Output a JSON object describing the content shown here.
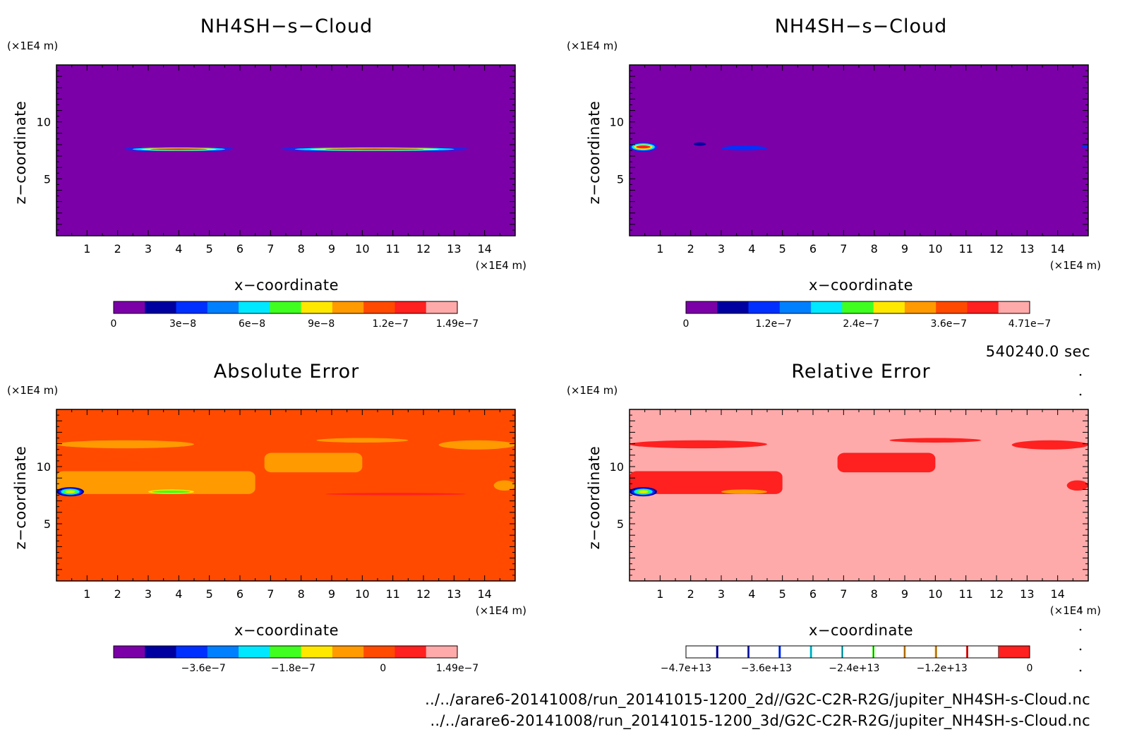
{
  "colors": {
    "purple": "#7b00a8",
    "navy": "#0000a0",
    "blue": "#0030ff",
    "mid_blue": "#0080ff",
    "cyan": "#00e8ff",
    "green": "#40ff20",
    "yellow": "#ffe800",
    "orange": "#ff9a00",
    "red_orange": "#ff4a00",
    "red": "#ff2020",
    "pink": "#ffaaaa"
  },
  "time_label": "540240.0 sec",
  "footer": {
    "line1": "../../arare6-20141008/run_20141015-1200_2d//G2C-C2R-R2G/jupiter_NH4SH-s-Cloud.nc",
    "line2": "../../arare6-20141008/run_20141015-1200_3d/G2C-C2R-R2G/jupiter_NH4SH-s-Cloud.nc"
  },
  "chart_data": [
    {
      "type": "heatmap",
      "title": "NH4SH−s−Cloud",
      "xlabel": "x−coordinate",
      "ylabel": "z−coordinate",
      "x_unit": "(×1E4 m)",
      "y_unit": "(×1E4 m)",
      "xlim": [
        0,
        15
      ],
      "ylim": [
        0,
        15
      ],
      "x_ticks": [
        "1",
        "2",
        "3",
        "4",
        "5",
        "6",
        "7",
        "8",
        "9",
        "10",
        "11",
        "12",
        "13",
        "14"
      ],
      "y_ticks": [
        "5",
        "10"
      ],
      "background": "purple",
      "features": [
        {
          "x": [
            2.2,
            5.8
          ],
          "z": [
            7.4,
            7.8
          ],
          "value": 1.4e-07,
          "colors": [
            "blue",
            "cyan",
            "yellow",
            "red"
          ]
        },
        {
          "x": [
            7.3,
            13.5
          ],
          "z": [
            7.4,
            7.8
          ],
          "value": 1.4e-07,
          "colors": [
            "blue",
            "cyan",
            "yellow",
            "red"
          ]
        }
      ],
      "colorbar": {
        "colors": [
          "purple",
          "navy",
          "blue",
          "mid_blue",
          "cyan",
          "green",
          "yellow",
          "orange",
          "red_orange",
          "red",
          "pink"
        ],
        "tick_labels": [
          "0",
          "3e−8",
          "6e−8",
          "9e−8",
          "1.2e−7",
          "1.49e−7"
        ],
        "tick_values": [
          0,
          3e-08,
          6e-08,
          9e-08,
          1.2e-07,
          1.49e-07
        ],
        "range": [
          0,
          1.49e-07
        ]
      }
    },
    {
      "type": "heatmap",
      "title": "NH4SH−s−Cloud",
      "xlabel": "x−coordinate",
      "ylabel": "z−coordinate",
      "x_unit": "(×1E4 m)",
      "y_unit": "(×1E4 m)",
      "xlim": [
        0,
        15
      ],
      "ylim": [
        0,
        15
      ],
      "x_ticks": [
        "1",
        "2",
        "3",
        "4",
        "5",
        "6",
        "7",
        "8",
        "9",
        "10",
        "11",
        "12",
        "13",
        "14"
      ],
      "y_ticks": [
        "5",
        "10"
      ],
      "background": "purple",
      "features": [
        {
          "x": [
            0,
            0.9
          ],
          "z": [
            7.4,
            8.2
          ],
          "value": 4.7e-07,
          "colors": [
            "blue",
            "cyan",
            "yellow",
            "red"
          ]
        },
        {
          "x": [
            2.1,
            2.5
          ],
          "z": [
            7.9,
            8.2
          ],
          "value": 1e-07,
          "colors": [
            "navy"
          ]
        },
        {
          "x": [
            3.0,
            4.5
          ],
          "z": [
            7.5,
            7.9
          ],
          "value": 1e-07,
          "colors": [
            "blue"
          ]
        },
        {
          "x": [
            14.8,
            15.0
          ],
          "z": [
            7.7,
            8.0
          ],
          "value": 1e-07,
          "colors": [
            "blue"
          ]
        }
      ],
      "colorbar": {
        "colors": [
          "purple",
          "navy",
          "blue",
          "mid_blue",
          "cyan",
          "green",
          "yellow",
          "orange",
          "red_orange",
          "red",
          "pink"
        ],
        "tick_labels": [
          "0",
          "1.2e−7",
          "2.4e−7",
          "3.6e−7",
          "4.71e−7"
        ],
        "tick_values": [
          0,
          1.2e-07,
          2.4e-07,
          3.6e-07,
          4.71e-07
        ],
        "range": [
          0,
          4.71e-07
        ]
      }
    },
    {
      "type": "heatmap",
      "title": "Absolute Error",
      "xlabel": "x−coordinate",
      "ylabel": "z−coordinate",
      "x_unit": "(×1E4 m)",
      "y_unit": "(×1E4 m)",
      "xlim": [
        0,
        15
      ],
      "ylim": [
        0,
        15
      ],
      "x_ticks": [
        "1",
        "2",
        "3",
        "4",
        "5",
        "6",
        "7",
        "8",
        "9",
        "10",
        "11",
        "12",
        "13",
        "14"
      ],
      "y_ticks": [
        "5",
        "10"
      ],
      "background": "red_orange",
      "features": [
        {
          "x": [
            0,
            6.5
          ],
          "z": [
            7.6,
            9.6
          ],
          "value": 0.0,
          "colors": [
            "orange"
          ]
        },
        {
          "x": [
            0,
            0.9
          ],
          "z": [
            7.4,
            8.2
          ],
          "value": -4.7e-07,
          "colors": [
            "navy",
            "blue",
            "cyan",
            "green",
            "yellow"
          ]
        },
        {
          "x": [
            3.0,
            4.5
          ],
          "z": [
            7.6,
            8.0
          ],
          "value": -1e-07,
          "colors": [
            "yellow",
            "green"
          ]
        },
        {
          "x": [
            6.8,
            10.0
          ],
          "z": [
            9.5,
            11.2
          ],
          "value": 0.0,
          "colors": [
            "orange"
          ]
        },
        {
          "x": [
            0,
            4.5
          ],
          "z": [
            11.6,
            12.3
          ],
          "value": 0.0,
          "colors": [
            "orange"
          ]
        },
        {
          "x": [
            8.5,
            11.5
          ],
          "z": [
            12.1,
            12.5
          ],
          "value": 0.0,
          "colors": [
            "orange"
          ]
        },
        {
          "x": [
            12.5,
            15.0
          ],
          "z": [
            11.5,
            12.3
          ],
          "value": 0.0,
          "colors": [
            "orange"
          ]
        },
        {
          "x": [
            14.3,
            15.0
          ],
          "z": [
            7.9,
            8.8
          ],
          "value": 0.0,
          "colors": [
            "orange"
          ]
        },
        {
          "x": [
            8.8,
            13.4
          ],
          "z": [
            7.5,
            7.7
          ],
          "value": 1e-07,
          "colors": [
            "red"
          ]
        }
      ],
      "colorbar": {
        "colors": [
          "purple",
          "navy",
          "blue",
          "mid_blue",
          "cyan",
          "green",
          "yellow",
          "orange",
          "red_orange",
          "red",
          "pink"
        ],
        "tick_labels": [
          "−3.6e−7",
          "−1.8e−7",
          "0",
          "1.49e−7"
        ],
        "tick_values": [
          -3.6e-07,
          -1.8e-07,
          0,
          1.49e-07
        ],
        "range": [
          -5.4e-07,
          1.49e-07
        ]
      }
    },
    {
      "type": "heatmap",
      "title": "Relative Error",
      "xlabel": "x−coordinate",
      "ylabel": "z−coordinate",
      "x_unit": "(×1E4 m)",
      "y_unit": "(×1E4 m)",
      "xlim": [
        0,
        15
      ],
      "ylim": [
        0,
        15
      ],
      "x_ticks": [
        "1",
        "2",
        "3",
        "4",
        "5",
        "6",
        "7",
        "8",
        "9",
        "10",
        "11",
        "12",
        "13",
        "14"
      ],
      "y_ticks": [
        "5",
        "10"
      ],
      "background": "pink",
      "features": [
        {
          "x": [
            0,
            5.0
          ],
          "z": [
            7.6,
            9.6
          ],
          "value": -1000000000000.0,
          "colors": [
            "red"
          ]
        },
        {
          "x": [
            0,
            0.9
          ],
          "z": [
            7.4,
            8.2
          ],
          "value": -47000000000000.0,
          "colors": [
            "navy",
            "blue",
            "cyan",
            "green",
            "yellow"
          ]
        },
        {
          "x": [
            3.0,
            4.5
          ],
          "z": [
            7.6,
            8.0
          ],
          "value": -10000000000000.0,
          "colors": [
            "orange"
          ]
        },
        {
          "x": [
            6.8,
            10.0
          ],
          "z": [
            9.5,
            11.2
          ],
          "value": -1000000000000.0,
          "colors": [
            "red"
          ]
        },
        {
          "x": [
            0,
            4.5
          ],
          "z": [
            11.6,
            12.3
          ],
          "value": -1000000000000.0,
          "colors": [
            "red"
          ]
        },
        {
          "x": [
            8.5,
            11.5
          ],
          "z": [
            12.1,
            12.5
          ],
          "value": -1000000000000.0,
          "colors": [
            "red"
          ]
        },
        {
          "x": [
            12.5,
            15.0
          ],
          "z": [
            11.5,
            12.3
          ],
          "value": -1000000000000.0,
          "colors": [
            "red"
          ]
        },
        {
          "x": [
            14.3,
            15.0
          ],
          "z": [
            7.9,
            8.8
          ],
          "value": -1000000000000.0,
          "colors": [
            "red"
          ]
        }
      ],
      "colorbar": {
        "colors": [
          "white",
          "white",
          "white",
          "white",
          "white",
          "white",
          "white",
          "white",
          "white",
          "white",
          "red"
        ],
        "divider_colors": [
          "navy",
          "blue",
          "blue",
          "cyan",
          "cyan",
          "green",
          "orange",
          "orange",
          "red"
        ],
        "tick_labels": [
          "−4.7e+13",
          "−3.6e+13",
          "−2.4e+13",
          "−1.2e+13",
          "0"
        ],
        "tick_values": [
          -47000000000000.0,
          -36000000000000.0,
          -24000000000000.0,
          -12000000000000.0,
          0
        ],
        "range": [
          -47000000000000.0,
          0
        ]
      }
    }
  ]
}
